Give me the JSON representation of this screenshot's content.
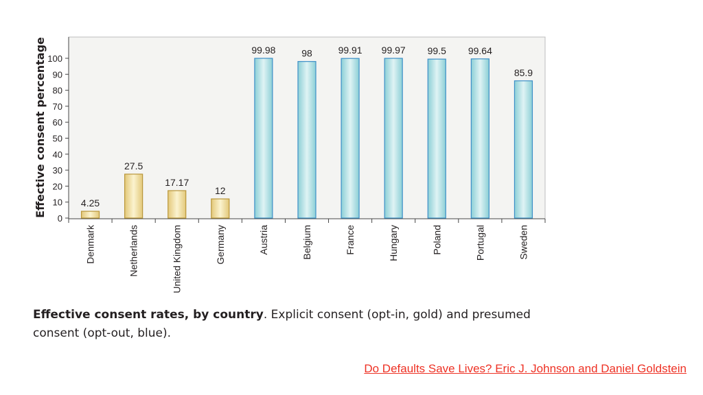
{
  "chart_data": {
    "type": "bar",
    "title": "",
    "xlabel": "",
    "ylabel": "Effective consent percentage",
    "ylim": [
      0,
      105
    ],
    "yticks": [
      0,
      10,
      20,
      30,
      40,
      50,
      60,
      70,
      80,
      90,
      100
    ],
    "grid": false,
    "categories": [
      "Denmark",
      "Netherlands",
      "United Kingdom",
      "Germany",
      "Austria",
      "Belgium",
      "France",
      "Hungary",
      "Poland",
      "Portugal",
      "Sweden"
    ],
    "values": [
      4.25,
      27.5,
      17.17,
      12,
      99.98,
      98,
      99.91,
      99.97,
      99.5,
      99.64,
      85.9
    ],
    "value_labels": [
      "4.25",
      "27.5",
      "17.17",
      "12",
      "99.98",
      "98",
      "99.91",
      "99.97",
      "99.5",
      "99.64",
      "85.9"
    ],
    "consent_type": [
      "opt-in",
      "opt-in",
      "opt-in",
      "opt-in",
      "opt-out",
      "opt-out",
      "opt-out",
      "opt-out",
      "opt-out",
      "opt-out",
      "opt-out"
    ],
    "colors": {
      "opt-in": {
        "fill_light": "#fbf3cf",
        "fill_dark": "#e3c87a",
        "stroke": "#b8963a"
      },
      "opt-out": {
        "fill_light": "#dff3f4",
        "fill_dark": "#8ccfd6",
        "stroke": "#3d8fc7"
      },
      "plot_background": "#f4f4f2",
      "axis": "#444444"
    }
  },
  "caption": {
    "bold": "Effective consent rates, by country",
    "rest": ". Explicit consent (opt-in, gold) and presumed consent (opt-out, blue)."
  },
  "source_link": {
    "text": "Do Defaults Save Lives? Eric J. Johnson and Daniel Goldstein",
    "color": "#ee3124"
  }
}
